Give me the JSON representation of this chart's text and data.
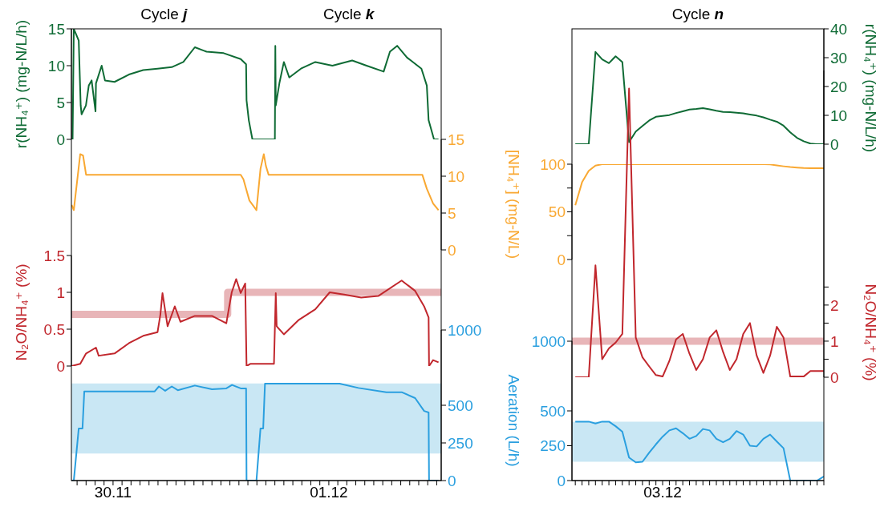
{
  "chart_data": [
    {
      "type": "line",
      "ylabel": "r(NH₄⁺) (mg-N/L/h)",
      "annotations": [
        "Cycle j",
        "Cycle k"
      ],
      "xlim": [
        "--11-29T19:22",
        "--12-01T12:30"
      ],
      "ylim": [
        0,
        15
      ],
      "yticks": [
        0,
        5,
        10,
        15
      ],
      "tick_labels": "y",
      "series": [
        {
          "color": "#0f6b35",
          "x": [
            "--11-29T19:23",
            "--11-29T19:30",
            "--11-29T19:38",
            "--11-29T20:11",
            "--11-29T20:24",
            "--11-29T20:30",
            "--11-29T20:59",
            "--11-29T21:18",
            "--11-29T21:37",
            "--11-29T22:03",
            "--11-29T22:06",
            "--11-29T22:44",
            "--11-29T23:06",
            "--11-30T00:10",
            "--11-30T01:46",
            "--11-30T03:21",
            "--11-30T04:57",
            "--11-30T06:32",
            "--11-30T07:49",
            "--11-30T09:06",
            "--11-30T10:24",
            "--11-30T12:18",
            "--11-30T14:12",
            "--11-30T14:48",
            "--11-30T14:51",
            "--11-30T15:06",
            "--11-30T15:30",
            "--11-30T18:00",
            "--11-30T18:03",
            "--11-30T18:06",
            "--11-30T18:30",
            "--11-30T19:00",
            "--11-30T19:36",
            "--11-30T20:54",
            "--11-30T22:30",
            "--12-01T00:24",
            "--12-01T02:36",
            "--12-01T04:12",
            "--12-01T06:06",
            "--12-01T06:48",
            "--12-01T07:36",
            "--12-01T08:42",
            "--12-01T10:18",
            "--12-01T10:54",
            "--12-01T11:06",
            "--12-01T11:42",
            "--12-01T12:12"
          ],
          "values": [
            0,
            0,
            15,
            13.4,
            4.6,
            3.4,
            4.6,
            7.3,
            8.0,
            3.8,
            7.6,
            10.0,
            8.0,
            7.8,
            8.8,
            9.4,
            9.6,
            9.8,
            10.5,
            12.5,
            11.9,
            11.7,
            10.9,
            10.2,
            5.3,
            2.6,
            0,
            0,
            12.7,
            4.6,
            7.6,
            10.5,
            8.4,
            9.6,
            10.5,
            10.0,
            10.7,
            10.0,
            9.2,
            11.9,
            12.7,
            11.1,
            9.6,
            7.3,
            2.6,
            0,
            0
          ]
        }
      ]
    },
    {
      "type": "line",
      "ylabel": "[NH₄⁺] (mg-N/L)",
      "xlim": [
        "--11-29T19:22",
        "--12-01T12:30"
      ],
      "ylim": [
        0,
        15
      ],
      "yticks": [
        0,
        5,
        10,
        15
      ],
      "tick_labels": "y",
      "series": [
        {
          "color": "#f9a832",
          "x": [
            "--11-29T19:24",
            "--11-29T19:38",
            "--11-29T20:21",
            "--11-29T20:40",
            "--11-29T21:00",
            "--11-30T14:12",
            "--11-30T14:30",
            "--11-30T15:10",
            "--11-30T15:57",
            "--11-30T16:24",
            "--11-30T16:46",
            "--11-30T17:00",
            "--11-30T17:18",
            "--12-01T10:24",
            "--12-01T10:54",
            "--12-01T11:36",
            "--12-01T12:12"
          ],
          "values": [
            6.1,
            5.4,
            13.0,
            12.8,
            10.2,
            10.2,
            9.6,
            6.7,
            5.4,
            11.0,
            13.0,
            11.4,
            10.2,
            10.2,
            8.3,
            6.3,
            5.4
          ]
        }
      ]
    },
    {
      "type": "line",
      "ylabel": "N₂O/NH₄⁺ (%)",
      "xlim": [
        "--11-29T19:22",
        "--12-01T12:30"
      ],
      "ylim": [
        0,
        1.5
      ],
      "yticks": [
        0,
        0.5,
        1,
        1.5
      ],
      "tick_labels": "y",
      "series": [
        {
          "type": "step",
          "color": "#e8b5b8",
          "x": [
            "--11-29T19:22",
            "--11-30T12:45",
            "--12-01T12:30"
          ],
          "values": [
            0.7,
            1.0,
            1.0
          ]
        },
        {
          "color": "#c1272d",
          "x": [
            "--11-29T19:24",
            "--11-29T20:21",
            "--11-29T21:00",
            "--11-29T22:06",
            "--11-29T22:24",
            "--11-30T00:10",
            "--11-30T01:46",
            "--11-30T03:21",
            "--11-30T04:57",
            "--11-30T05:16",
            "--11-30T05:30",
            "--11-30T06:04",
            "--11-30T06:52",
            "--11-30T07:30",
            "--11-30T09:06",
            "--11-30T11:00",
            "--11-30T12:36",
            "--11-30T13:12",
            "--11-30T13:42",
            "--11-30T14:12",
            "--11-30T14:42",
            "--11-30T14:51",
            "--11-30T15:18",
            "--11-30T17:54",
            "--11-30T18:06",
            "--11-30T18:12",
            "--11-30T19:00",
            "--11-30T20:36",
            "--11-30T22:30",
            "--12-01T00:06",
            "--12-01T01:42",
            "--12-01T03:36",
            "--12-01T05:30",
            "--12-01T08:06",
            "--12-01T09:36",
            "--12-01T10:36",
            "--12-01T11:06",
            "--12-01T11:09",
            "--12-01T11:36",
            "--12-01T12:12"
          ],
          "values": [
            0,
            0.03,
            0.17,
            0.25,
            0.14,
            0.17,
            0.31,
            0.41,
            0.46,
            0.7,
            0.99,
            0.54,
            0.81,
            0.6,
            0.68,
            0.68,
            0.58,
            1.0,
            1.18,
            0.99,
            1.12,
            0,
            0.03,
            0.03,
            0.99,
            0.54,
            0.43,
            0.62,
            0.77,
            1.0,
            0.97,
            0.93,
            0.95,
            1.16,
            1.02,
            0.81,
            0.66,
            0,
            0.08,
            0.05
          ]
        }
      ]
    },
    {
      "type": "line",
      "ylabel": "Aeration (L/h)",
      "xlim": [
        "--11-29T19:22",
        "--12-01T12:30"
      ],
      "ylim": [
        0,
        1000
      ],
      "yticks": [
        0,
        250,
        500,
        1000
      ],
      "xticks": [
        {
          "value": "--11-29T20:00",
          "label": null
        },
        {
          "value": "--11-29T21:00",
          "label": null
        },
        {
          "value": "--11-29T22:00",
          "label": null
        },
        {
          "value": "--11-29T23:00",
          "label": null
        },
        {
          "value": "--11-30T00:00",
          "label": "30.11"
        },
        {
          "value": "--11-30T01:00",
          "label": null
        },
        {
          "value": "--11-30T02:00",
          "label": null
        },
        {
          "value": "--11-30T03:00",
          "label": null
        },
        {
          "value": "--11-30T04:00",
          "label": null
        },
        {
          "value": "--11-30T05:00",
          "label": null
        },
        {
          "value": "--11-30T06:00",
          "label": null
        },
        {
          "value": "--11-30T07:00",
          "label": null
        },
        {
          "value": "--11-30T08:00",
          "label": null
        },
        {
          "value": "--11-30T09:00",
          "label": null
        },
        {
          "value": "--11-30T10:00",
          "label": null
        },
        {
          "value": "--11-30T11:00",
          "label": null
        },
        {
          "value": "--11-30T12:00",
          "label": null
        },
        {
          "value": "--11-30T13:00",
          "label": null
        },
        {
          "value": "--11-30T14:00",
          "label": null
        },
        {
          "value": "--11-30T15:00",
          "label": null
        },
        {
          "value": "--11-30T16:00",
          "label": null
        },
        {
          "value": "--11-30T17:00",
          "label": null
        },
        {
          "value": "--11-30T18:00",
          "label": null
        },
        {
          "value": "--11-30T19:00",
          "label": null
        },
        {
          "value": "--11-30T20:00",
          "label": null
        },
        {
          "value": "--11-30T21:00",
          "label": null
        },
        {
          "value": "--11-30T22:00",
          "label": null
        },
        {
          "value": "--11-30T23:00",
          "label": null
        },
        {
          "value": "--12-01T00:00",
          "label": "01.12"
        },
        {
          "value": "--12-01T01:00",
          "label": null
        },
        {
          "value": "--12-01T02:00",
          "label": null
        },
        {
          "value": "--12-01T03:00",
          "label": null
        },
        {
          "value": "--12-01T04:00",
          "label": null
        },
        {
          "value": "--12-01T05:00",
          "label": null
        },
        {
          "value": "--12-01T06:00",
          "label": null
        },
        {
          "value": "--12-01T07:00",
          "label": null
        },
        {
          "value": "--12-01T08:00",
          "label": null
        },
        {
          "value": "--12-01T09:00",
          "label": null
        },
        {
          "value": "--12-01T10:00",
          "label": null
        },
        {
          "value": "--12-01T11:00",
          "label": null
        },
        {
          "value": "--12-01T12:00",
          "label": null
        }
      ],
      "bands": [
        {
          "axis": "y",
          "from": 180,
          "to": 645,
          "color": "#c9e7f4"
        }
      ],
      "series": [
        {
          "color": "#2a9fdf",
          "x": [
            "--11-29T19:24",
            "--11-29T19:38",
            "--11-29T20:11",
            "--11-29T20:36",
            "--11-29T20:48",
            "--11-30T04:38",
            "--11-30T05:06",
            "--11-30T05:48",
            "--11-30T06:32",
            "--11-30T07:12",
            "--11-30T09:06",
            "--11-30T11:00",
            "--11-30T12:36",
            "--11-30T13:14",
            "--11-30T14:12",
            "--11-30T14:48",
            "--11-30T14:51",
            "--11-30T15:57",
            "--11-30T16:24",
            "--11-30T16:42",
            "--11-30T16:54",
            "--12-01T01:12",
            "--12-01T03:18",
            "--12-01T06:24",
            "--12-01T08:06",
            "--12-01T09:36",
            "--12-01T10:36",
            "--12-01T11:06",
            "--12-01T11:09",
            "--12-01T12:12"
          ],
          "values": [
            0,
            0,
            346,
            346,
            592,
            592,
            625,
            596,
            625,
            600,
            631,
            606,
            612,
            635,
            612,
            612,
            0,
            0,
            346,
            346,
            644,
            644,
            615,
            587,
            587,
            548,
            462,
            452,
            0,
            0
          ]
        }
      ]
    },
    {
      "type": "line",
      "ylabel": "r(NH₄⁺) (mg-N/L/h)",
      "annotations": [
        "Cycle n"
      ],
      "ylim": [
        0,
        40
      ],
      "yticks": [
        0,
        10,
        20,
        30,
        40
      ],
      "tick_labels": "y",
      "categories": [
        null,
        null,
        null,
        null,
        null,
        null,
        null,
        null,
        null,
        null,
        null,
        null,
        null,
        null,
        null,
        null,
        null,
        null,
        null,
        null,
        null,
        null,
        null,
        null,
        null,
        null,
        null,
        null,
        null,
        null,
        null,
        null,
        null,
        null,
        null,
        null,
        null,
        null
      ],
      "series": [
        {
          "color": "#0f6b35",
          "values": [
            0,
            0,
            0,
            32,
            29.4,
            28.1,
            30.5,
            28.5,
            0.7,
            4.4,
            6.3,
            8.2,
            9.5,
            9.8,
            10.1,
            10.8,
            11.4,
            12.0,
            12.2,
            12.5,
            12.1,
            11.6,
            11.2,
            11.1,
            10.9,
            10.7,
            10.3,
            9.9,
            9.3,
            8.5,
            7.8,
            6.4,
            4.1,
            2.2,
            1.0,
            0.2,
            0,
            0
          ]
        }
      ]
    },
    {
      "type": "line",
      "ylim": [
        0,
        100
      ],
      "yticks": [
        0,
        {
          "value": 25,
          "label": null
        },
        50,
        {
          "value": 75,
          "label": null
        },
        100
      ],
      "tick_labels": "y",
      "categories": [
        null,
        null,
        null,
        null,
        null,
        null,
        null,
        null,
        null,
        null,
        null,
        null,
        null,
        null,
        null,
        null,
        null,
        null,
        null,
        null,
        null,
        null,
        null,
        null,
        null,
        null,
        null,
        null,
        null,
        null,
        null,
        null,
        null,
        null,
        null,
        null,
        null,
        null
      ],
      "series": [
        {
          "color": "#f9a832",
          "values": [
            57,
            81,
            93,
            98.5,
            100,
            100,
            100,
            100,
            100,
            100,
            100,
            100,
            100,
            100,
            100,
            100,
            100,
            100,
            100,
            100,
            100,
            100,
            100,
            100,
            100,
            100,
            100,
            100,
            100,
            99.7,
            98.7,
            97.8,
            97,
            96.5,
            96,
            95.8,
            95.8,
            95.8
          ]
        }
      ]
    },
    {
      "type": "line",
      "ylabel": "N₂O/NH₄⁺ (%)",
      "ylim": [
        0,
        8.5
      ],
      "yticks": [
        0,
        {
          "value": 0.5,
          "label": null
        },
        1,
        {
          "value": 1.5,
          "label": null
        },
        2,
        {
          "value": 2.5,
          "label": null
        }
      ],
      "tick_labels": "y",
      "categories": [
        null,
        null,
        null,
        null,
        null,
        null,
        null,
        null,
        null,
        null,
        null,
        null,
        null,
        null,
        null,
        null,
        null,
        null,
        null,
        null,
        null,
        null,
        null,
        null,
        null,
        null,
        null,
        null,
        null,
        null,
        null,
        null,
        null,
        null,
        null,
        null,
        null,
        null
      ],
      "bands": [
        {
          "axis": "y",
          "from": 0.9,
          "to": 1.1,
          "color": "#e8b5b8"
        }
      ],
      "series": [
        {
          "color": "#c1272d",
          "values": [
            0,
            0,
            0,
            3.1,
            0.5,
            0.8,
            0.96,
            1.2,
            8.0,
            1.1,
            0.55,
            0.3,
            0.06,
            0.02,
            0.45,
            1.05,
            1.2,
            0.65,
            0.2,
            0.5,
            1.1,
            1.3,
            0.7,
            0.2,
            0.5,
            1.2,
            1.5,
            0.6,
            0.12,
            0.6,
            1.4,
            1.1,
            0.02,
            0.02,
            0.02,
            0.17,
            0.17,
            0.17
          ]
        }
      ]
    },
    {
      "type": "line",
      "ylim": [
        0,
        1000
      ],
      "yticks": [
        0,
        250,
        500,
        1000
      ],
      "categories": [
        null,
        null,
        null,
        null,
        null,
        null,
        null,
        null,
        null,
        null,
        null,
        null,
        null,
        "03.12",
        null,
        null,
        null,
        null,
        null,
        null,
        null,
        null,
        null,
        null,
        null,
        null,
        null,
        null,
        null,
        null,
        null,
        null,
        null,
        null,
        null,
        null,
        null,
        null
      ],
      "bands": [
        {
          "axis": "y",
          "from": 135,
          "to": 423,
          "color": "#c9e7f4"
        }
      ],
      "series": [
        {
          "color": "#2a9fdf",
          "values": [
            423,
            423,
            423,
            410,
            423,
            423,
            390,
            350,
            165,
            131,
            135,
            200,
            260,
            315,
            360,
            375,
            340,
            300,
            320,
            370,
            360,
            300,
            275,
            300,
            355,
            330,
            250,
            245,
            300,
            330,
            280,
            232,
            0,
            0,
            0,
            0,
            0,
            29
          ]
        }
      ]
    }
  ]
}
